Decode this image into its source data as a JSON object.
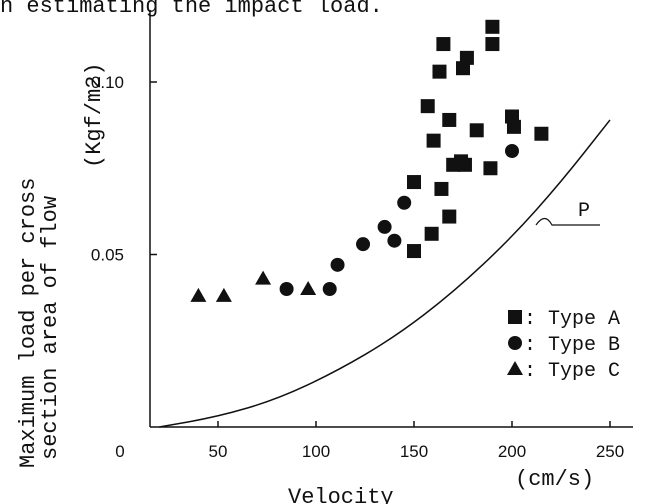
{
  "caption_fragment": "n estimating the impact load.",
  "chart_data": {
    "type": "scatter",
    "xlabel": "Velocity",
    "xunit": "(cm/s)",
    "ylabel_line1": "Maximum load per cross",
    "ylabel_line2": "section area of flow",
    "yunit": "(Kgf/m2)",
    "xlim": [
      0,
      250
    ],
    "ylim": [
      0,
      0.12
    ],
    "x_ticks": [
      {
        "value": 0,
        "label": "0"
      },
      {
        "value": 50,
        "label": "50"
      },
      {
        "value": 100,
        "label": "100"
      },
      {
        "value": 150,
        "label": "150"
      },
      {
        "value": 200,
        "label": "200"
      },
      {
        "value": 250,
        "label": "250"
      }
    ],
    "y_ticks": [
      {
        "value": 0.05,
        "label": "0.05"
      },
      {
        "value": 0.1,
        "label": "0.10"
      }
    ],
    "series": [
      {
        "name": "Type A",
        "legend_label": ": Type A",
        "marker": "square",
        "color": "#111111",
        "points": [
          [
            157,
            0.093
          ],
          [
            160,
            0.083
          ],
          [
            163,
            0.103
          ],
          [
            165,
            0.111
          ],
          [
            175,
            0.104
          ],
          [
            177,
            0.107
          ],
          [
            190,
            0.116
          ],
          [
            190,
            0.111
          ],
          [
            200,
            0.09
          ],
          [
            201,
            0.087
          ],
          [
            215,
            0.085
          ],
          [
            182,
            0.086
          ],
          [
            168,
            0.089
          ],
          [
            170,
            0.076
          ],
          [
            176,
            0.076
          ],
          [
            174,
            0.077
          ],
          [
            189,
            0.075
          ],
          [
            164,
            0.069
          ],
          [
            150,
            0.071
          ],
          [
            168,
            0.061
          ],
          [
            159,
            0.056
          ],
          [
            150,
            0.051
          ]
        ]
      },
      {
        "name": "Type B",
        "legend_label": ": Type B",
        "marker": "circle",
        "color": "#111111",
        "points": [
          [
            85,
            0.04
          ],
          [
            107,
            0.04
          ],
          [
            111,
            0.047
          ],
          [
            124,
            0.053
          ],
          [
            135,
            0.058
          ],
          [
            140,
            0.054
          ],
          [
            145,
            0.065
          ],
          [
            200,
            0.08
          ]
        ]
      },
      {
        "name": "Type C",
        "legend_label": ": Type C",
        "marker": "triangle",
        "color": "#111111",
        "points": [
          [
            40,
            0.038
          ],
          [
            53,
            0.038
          ],
          [
            73,
            0.043
          ],
          [
            96,
            0.04
          ]
        ]
      }
    ],
    "curve": {
      "label": "P",
      "points": [
        [
          20,
          0.0
        ],
        [
          50,
          0.003
        ],
        [
          80,
          0.008
        ],
        [
          110,
          0.016
        ],
        [
          140,
          0.026
        ],
        [
          170,
          0.039
        ],
        [
          200,
          0.055
        ],
        [
          225,
          0.071
        ],
        [
          250,
          0.089
        ]
      ]
    },
    "legend_position": "bottom-right",
    "grid": false
  }
}
